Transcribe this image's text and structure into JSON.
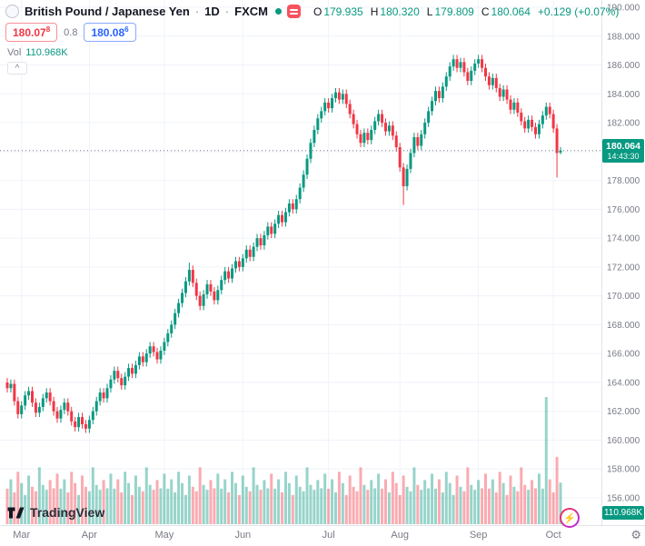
{
  "header": {
    "symbol": "British Pound / Japanese Yen",
    "separator": "·",
    "interval": "1D",
    "exchange": "FXCM",
    "ohlc": {
      "o_label": "O",
      "o": "179.935",
      "h_label": "H",
      "h": "180.320",
      "l_label": "L",
      "l": "179.809",
      "c_label": "C",
      "c": "180.064",
      "change": "+0.129 (+0.07%)"
    },
    "sell_price": "180.07",
    "sell_sup": "8",
    "spread": "0.8",
    "buy_price": "180.08",
    "buy_sup": "6",
    "vol_label": "Vol",
    "vol_value": "110.968K"
  },
  "icons": {
    "chevron_up": "^",
    "lightning": "⚡",
    "gear": "⚙"
  },
  "price_label": {
    "price": "180.064",
    "countdown": "14:43:30"
  },
  "volume_label": "110.968K",
  "footer": {
    "logo_text": "TradingView"
  },
  "price_axis": {
    "labels": [
      "190.000",
      "188.000",
      "186.000",
      "184.000",
      "182.000",
      "180.000",
      "178.000",
      "176.000",
      "174.000",
      "172.000",
      "170.000",
      "168.000",
      "166.000",
      "164.000",
      "162.000",
      "160.000",
      "158.000",
      "156.000"
    ]
  },
  "time_axis": {
    "labels": [
      "Mar",
      "Apr",
      "May",
      "Jun",
      "Jul",
      "Aug",
      "Sep",
      "Oct"
    ]
  },
  "colors": {
    "up": "#089981",
    "down": "#f23645",
    "vol_up": "rgba(8,153,129,0.42)",
    "vol_down": "rgba(242,54,69,0.42)",
    "grid": "#f0f3fa",
    "axis_text": "#787b86",
    "axis_border": "#e0e3eb",
    "label_bg": "#089981",
    "buy": "#2962ff",
    "sell": "#f23645"
  },
  "chart_data": {
    "type": "candlestick+volume",
    "title": "British Pound / Japanese Yen, 1D, FXCM",
    "y_axis": {
      "min": 156,
      "max": 190,
      "tick_step": 2
    },
    "legend_position": "top-left",
    "grid": true,
    "month_ticks": [
      4,
      23,
      44,
      66,
      90,
      110,
      132,
      153
    ],
    "candles_format": [
      "open",
      "high",
      "low",
      "close",
      "volume_k"
    ],
    "candles": [
      [
        164.0,
        164.3,
        163.3,
        163.6,
        95
      ],
      [
        163.6,
        164.2,
        163.3,
        163.9,
        120
      ],
      [
        163.9,
        164.2,
        162.4,
        162.7,
        85
      ],
      [
        162.7,
        163.0,
        161.5,
        161.8,
        140
      ],
      [
        161.8,
        162.7,
        161.5,
        162.4,
        110
      ],
      [
        162.4,
        163.4,
        162.1,
        163.1,
        78
      ],
      [
        163.1,
        163.7,
        162.8,
        163.4,
        130
      ],
      [
        163.4,
        163.7,
        162.3,
        162.6,
        100
      ],
      [
        162.6,
        162.9,
        161.6,
        161.9,
        88
      ],
      [
        161.9,
        162.6,
        161.6,
        162.3,
        152
      ],
      [
        162.3,
        163.2,
        162.0,
        162.9,
        105
      ],
      [
        162.9,
        163.6,
        162.6,
        163.3,
        92
      ],
      [
        163.3,
        163.6,
        162.4,
        162.7,
        118
      ],
      [
        162.7,
        163.0,
        161.7,
        162.0,
        96
      ],
      [
        162.0,
        162.3,
        161.2,
        161.5,
        135
      ],
      [
        161.5,
        162.4,
        161.2,
        162.1,
        95
      ],
      [
        162.1,
        162.9,
        161.8,
        162.6,
        120
      ],
      [
        162.6,
        162.9,
        161.7,
        162.0,
        85
      ],
      [
        162.0,
        162.3,
        161.0,
        161.3,
        140
      ],
      [
        161.3,
        161.6,
        160.6,
        160.9,
        110
      ],
      [
        160.9,
        161.9,
        160.6,
        161.6,
        78
      ],
      [
        161.6,
        161.9,
        160.8,
        161.1,
        130
      ],
      [
        161.1,
        161.4,
        160.5,
        160.8,
        100
      ],
      [
        160.8,
        161.7,
        160.5,
        161.4,
        88
      ],
      [
        161.4,
        162.3,
        161.1,
        162.0,
        152
      ],
      [
        162.0,
        163.0,
        161.7,
        162.7,
        105
      ],
      [
        162.7,
        163.6,
        162.4,
        163.3,
        92
      ],
      [
        163.3,
        163.6,
        162.6,
        162.9,
        118
      ],
      [
        162.9,
        163.9,
        162.6,
        163.6,
        96
      ],
      [
        163.6,
        164.5,
        163.3,
        164.2,
        135
      ],
      [
        164.2,
        165.1,
        163.9,
        164.8,
        95
      ],
      [
        164.8,
        165.1,
        164.0,
        164.3,
        120
      ],
      [
        164.3,
        164.6,
        163.5,
        163.8,
        85
      ],
      [
        163.8,
        164.7,
        163.5,
        164.4,
        140
      ],
      [
        164.4,
        165.3,
        164.1,
        165.0,
        110
      ],
      [
        165.0,
        165.3,
        164.3,
        164.6,
        78
      ],
      [
        164.6,
        165.5,
        164.3,
        165.2,
        130
      ],
      [
        165.2,
        166.1,
        164.9,
        165.8,
        100
      ],
      [
        165.8,
        166.1,
        165.1,
        165.4,
        88
      ],
      [
        165.4,
        166.3,
        165.1,
        166.0,
        152
      ],
      [
        166.0,
        166.8,
        165.7,
        166.5,
        105
      ],
      [
        166.5,
        166.8,
        165.8,
        166.1,
        92
      ],
      [
        166.1,
        166.4,
        165.3,
        165.6,
        118
      ],
      [
        165.6,
        166.5,
        165.3,
        166.2,
        96
      ],
      [
        166.2,
        167.1,
        165.9,
        166.8,
        135
      ],
      [
        166.8,
        167.7,
        166.5,
        167.4,
        95
      ],
      [
        167.4,
        168.3,
        167.1,
        168.0,
        120
      ],
      [
        168.0,
        169.1,
        167.7,
        168.8,
        85
      ],
      [
        168.8,
        169.8,
        168.5,
        169.5,
        140
      ],
      [
        169.5,
        170.5,
        169.2,
        170.2,
        110
      ],
      [
        170.2,
        171.3,
        169.9,
        171.0,
        78
      ],
      [
        171.0,
        172.3,
        170.7,
        171.8,
        130
      ],
      [
        171.8,
        172.1,
        170.6,
        170.9,
        100
      ],
      [
        170.9,
        171.2,
        169.7,
        170.0,
        88
      ],
      [
        170.0,
        170.3,
        169.0,
        169.3,
        152
      ],
      [
        169.3,
        170.4,
        169.0,
        170.1,
        105
      ],
      [
        170.1,
        171.1,
        169.8,
        170.8,
        92
      ],
      [
        170.8,
        171.1,
        170.0,
        170.3,
        118
      ],
      [
        170.3,
        170.6,
        169.4,
        169.7,
        96
      ],
      [
        169.7,
        170.7,
        169.4,
        170.4,
        135
      ],
      [
        170.4,
        171.4,
        170.1,
        171.1,
        95
      ],
      [
        171.1,
        172.0,
        170.8,
        171.7,
        120
      ],
      [
        171.7,
        172.0,
        170.9,
        171.2,
        85
      ],
      [
        171.2,
        172.2,
        170.9,
        171.9,
        140
      ],
      [
        171.9,
        172.7,
        171.6,
        172.4,
        110
      ],
      [
        172.4,
        172.7,
        171.7,
        172.0,
        78
      ],
      [
        172.0,
        172.9,
        171.7,
        172.6,
        130
      ],
      [
        172.6,
        173.5,
        172.3,
        173.2,
        100
      ],
      [
        173.2,
        173.5,
        172.4,
        172.7,
        88
      ],
      [
        172.7,
        173.7,
        172.4,
        173.4,
        152
      ],
      [
        173.4,
        174.3,
        173.1,
        174.0,
        105
      ],
      [
        174.0,
        174.3,
        173.2,
        173.5,
        92
      ],
      [
        173.5,
        174.5,
        173.2,
        174.2,
        118
      ],
      [
        174.2,
        175.1,
        173.9,
        174.8,
        96
      ],
      [
        174.8,
        175.1,
        174.0,
        174.3,
        135
      ],
      [
        174.3,
        175.3,
        174.0,
        175.0,
        95
      ],
      [
        175.0,
        175.9,
        174.7,
        175.6,
        120
      ],
      [
        175.6,
        175.9,
        174.8,
        175.1,
        85
      ],
      [
        175.1,
        176.1,
        174.8,
        175.8,
        140
      ],
      [
        175.8,
        176.7,
        175.5,
        176.4,
        110
      ],
      [
        176.4,
        176.7,
        175.7,
        176.0,
        78
      ],
      [
        176.0,
        177.0,
        175.7,
        176.7,
        130
      ],
      [
        176.7,
        177.8,
        176.4,
        177.5,
        100
      ],
      [
        177.5,
        178.7,
        177.2,
        178.4,
        88
      ],
      [
        178.4,
        179.8,
        178.1,
        179.5,
        152
      ],
      [
        179.5,
        180.9,
        179.2,
        180.6,
        105
      ],
      [
        180.6,
        181.8,
        180.3,
        181.5,
        92
      ],
      [
        181.5,
        182.6,
        181.2,
        182.3,
        118
      ],
      [
        182.3,
        183.1,
        182.0,
        182.8,
        96
      ],
      [
        182.8,
        183.7,
        182.5,
        183.4,
        135
      ],
      [
        183.4,
        183.7,
        182.7,
        183.0,
        95
      ],
      [
        183.0,
        184.0,
        182.7,
        183.7,
        120
      ],
      [
        183.7,
        184.4,
        183.4,
        184.1,
        85
      ],
      [
        184.1,
        184.4,
        183.3,
        183.6,
        140
      ],
      [
        183.6,
        184.3,
        183.3,
        184.0,
        110
      ],
      [
        184.0,
        184.3,
        183.0,
        183.3,
        78
      ],
      [
        183.3,
        183.6,
        182.3,
        182.6,
        130
      ],
      [
        182.6,
        182.9,
        181.6,
        181.9,
        100
      ],
      [
        181.9,
        182.2,
        180.9,
        181.2,
        88
      ],
      [
        181.2,
        181.5,
        180.3,
        180.6,
        152
      ],
      [
        180.6,
        181.6,
        180.3,
        181.3,
        105
      ],
      [
        181.3,
        181.6,
        180.5,
        180.8,
        92
      ],
      [
        180.8,
        181.8,
        180.5,
        181.5,
        118
      ],
      [
        181.5,
        182.4,
        181.2,
        182.1,
        96
      ],
      [
        182.1,
        182.9,
        181.8,
        182.6,
        135
      ],
      [
        182.6,
        182.9,
        181.7,
        182.0,
        95
      ],
      [
        182.0,
        182.3,
        181.1,
        181.4,
        120
      ],
      [
        181.4,
        182.1,
        181.1,
        181.8,
        85
      ],
      [
        181.8,
        182.1,
        180.8,
        181.1,
        140
      ],
      [
        181.1,
        181.4,
        180.0,
        180.3,
        110
      ],
      [
        180.3,
        180.6,
        178.6,
        178.9,
        78
      ],
      [
        178.9,
        179.2,
        176.3,
        177.6,
        130
      ],
      [
        177.6,
        179.1,
        177.3,
        178.8,
        100
      ],
      [
        178.8,
        180.2,
        178.5,
        179.9,
        88
      ],
      [
        179.9,
        181.3,
        179.6,
        181.0,
        152
      ],
      [
        181.0,
        181.3,
        180.1,
        180.4,
        105
      ],
      [
        180.4,
        181.5,
        180.1,
        181.2,
        92
      ],
      [
        181.2,
        182.3,
        180.9,
        182.0,
        118
      ],
      [
        182.0,
        183.1,
        181.7,
        182.8,
        96
      ],
      [
        182.8,
        183.8,
        182.5,
        183.5,
        135
      ],
      [
        183.5,
        184.5,
        183.2,
        184.2,
        95
      ],
      [
        184.2,
        184.5,
        183.4,
        183.7,
        120
      ],
      [
        183.7,
        184.8,
        183.4,
        184.5,
        85
      ],
      [
        184.5,
        185.5,
        184.2,
        185.2,
        140
      ],
      [
        185.2,
        186.2,
        184.9,
        185.9,
        110
      ],
      [
        185.9,
        186.7,
        185.6,
        186.4,
        78
      ],
      [
        186.4,
        186.7,
        185.5,
        185.8,
        130
      ],
      [
        185.8,
        186.5,
        185.5,
        186.2,
        100
      ],
      [
        186.2,
        186.5,
        185.2,
        185.5,
        88
      ],
      [
        185.5,
        185.8,
        184.6,
        184.9,
        152
      ],
      [
        184.9,
        185.9,
        184.6,
        185.6,
        105
      ],
      [
        185.6,
        186.4,
        185.3,
        186.1,
        92
      ],
      [
        186.1,
        186.7,
        185.8,
        186.4,
        118
      ],
      [
        186.4,
        186.7,
        185.5,
        185.8,
        96
      ],
      [
        185.8,
        186.1,
        184.9,
        185.2,
        135
      ],
      [
        185.2,
        185.5,
        184.3,
        184.6,
        95
      ],
      [
        184.6,
        185.4,
        184.3,
        185.1,
        120
      ],
      [
        185.1,
        185.4,
        184.1,
        184.4,
        85
      ],
      [
        184.4,
        184.7,
        183.5,
        183.8,
        140
      ],
      [
        183.8,
        184.6,
        183.5,
        184.3,
        110
      ],
      [
        184.3,
        184.6,
        183.3,
        183.6,
        78
      ],
      [
        183.6,
        183.9,
        182.6,
        182.9,
        130
      ],
      [
        182.9,
        183.7,
        182.6,
        183.4,
        100
      ],
      [
        183.4,
        183.7,
        182.4,
        182.7,
        88
      ],
      [
        182.7,
        183.0,
        181.8,
        182.1,
        152
      ],
      [
        182.1,
        182.4,
        181.3,
        181.6,
        105
      ],
      [
        181.6,
        182.5,
        181.3,
        182.2,
        92
      ],
      [
        182.2,
        182.5,
        181.4,
        181.7,
        118
      ],
      [
        181.7,
        182.0,
        180.9,
        181.2,
        96
      ],
      [
        181.2,
        182.2,
        180.9,
        181.9,
        135
      ],
      [
        181.9,
        182.8,
        181.6,
        182.5,
        95
      ],
      [
        182.5,
        183.4,
        182.2,
        183.1,
        340
      ],
      [
        183.1,
        183.4,
        182.3,
        182.6,
        120
      ],
      [
        182.6,
        182.9,
        181.3,
        181.6,
        85
      ],
      [
        181.6,
        181.9,
        178.2,
        179.9,
        180
      ],
      [
        179.935,
        180.32,
        179.809,
        180.064,
        111
      ]
    ]
  }
}
